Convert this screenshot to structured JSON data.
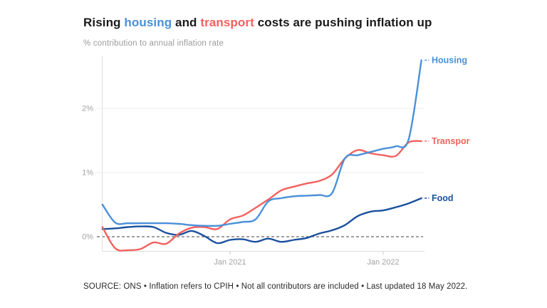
{
  "title": {
    "part1": "Rising ",
    "housing_word": "housing",
    "part2": " and ",
    "transport_word": "transport",
    "part3": " costs are pushing inflation up"
  },
  "subtitle": "% contribution to annual inflation rate",
  "source": "SOURCE: ONS • Inflation refers to CPIH • Not all contributors are included • Last updated 18 May 2022.",
  "colors": {
    "housing": "#4a90d9",
    "transport": "#f3615e",
    "food": "#1a509e",
    "title_text": "#1a1a1a",
    "muted_text": "#9b9b9b",
    "gridline": "#ececec",
    "axis_line": "#e0e0e0",
    "zero_line": "#3f3f3f"
  },
  "chart_data": {
    "type": "line",
    "title": "Rising housing and transport costs are pushing inflation up",
    "ylabel": "% contribution to annual inflation rate",
    "x": [
      "Mar 2020",
      "Apr 2020",
      "May 2020",
      "Jun 2020",
      "Jul 2020",
      "Aug 2020",
      "Sep 2020",
      "Oct 2020",
      "Nov 2020",
      "Dec 2020",
      "Jan 2021",
      "Feb 2021",
      "Mar 2021",
      "Apr 2021",
      "May 2021",
      "Jun 2021",
      "Jul 2021",
      "Aug 2021",
      "Sep 2021",
      "Oct 2021",
      "Nov 2021",
      "Dec 2021",
      "Jan 2022",
      "Feb 2022",
      "Mar 2022",
      "Apr 2022"
    ],
    "series": [
      {
        "name": "Food",
        "label": "Food",
        "color": "#1a509e",
        "values": [
          0.12,
          0.13,
          0.15,
          0.16,
          0.15,
          0.06,
          0.03,
          0.09,
          0.01,
          -0.1,
          -0.05,
          -0.04,
          -0.08,
          -0.03,
          -0.08,
          -0.05,
          -0.02,
          0.05,
          0.1,
          0.18,
          0.32,
          0.39,
          0.41,
          0.46,
          0.52,
          0.6
        ]
      },
      {
        "name": "Transport",
        "label": "Transpor",
        "color": "#f3615e",
        "values": [
          0.15,
          -0.18,
          -0.21,
          -0.19,
          -0.09,
          -0.11,
          0.05,
          0.14,
          0.15,
          0.12,
          0.27,
          0.33,
          0.45,
          0.58,
          0.72,
          0.78,
          0.83,
          0.87,
          0.97,
          1.22,
          1.35,
          1.3,
          1.27,
          1.26,
          1.47,
          1.49
        ]
      },
      {
        "name": "Housing",
        "label": "Housing",
        "color": "#4a90d9",
        "values": [
          0.5,
          0.22,
          0.21,
          0.21,
          0.21,
          0.21,
          0.2,
          0.18,
          0.17,
          0.17,
          0.2,
          0.23,
          0.27,
          0.55,
          0.6,
          0.63,
          0.64,
          0.65,
          0.68,
          1.22,
          1.27,
          1.32,
          1.37,
          1.41,
          1.52,
          2.75
        ]
      }
    ],
    "ytick_labels": [
      "0%",
      "1%",
      "2%"
    ],
    "ytick_values": [
      0,
      1,
      2
    ],
    "xtick_labels": [
      "Jan 2021",
      "Jan 2022"
    ],
    "xtick_indices": [
      10,
      22
    ],
    "ylim": [
      -0.3,
      2.85
    ],
    "grid": "horizontal-light",
    "zero_line": "dashed",
    "legend_position": "right-end-labels"
  }
}
